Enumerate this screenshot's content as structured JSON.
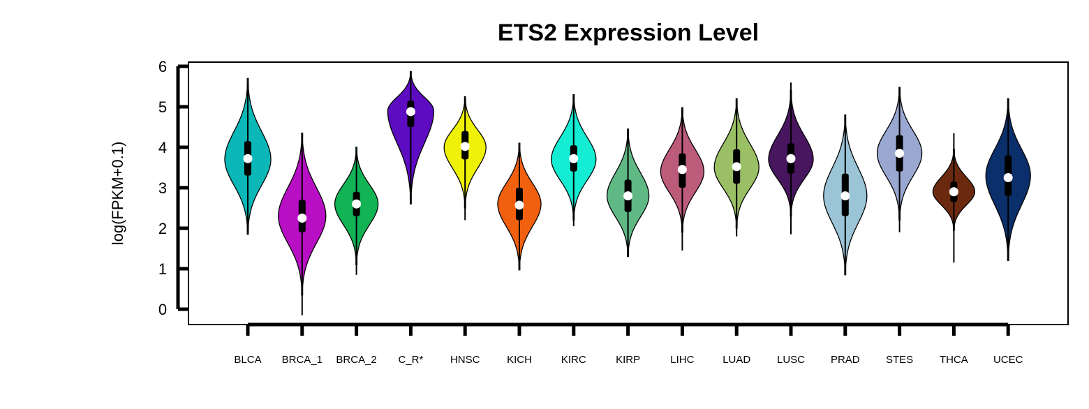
{
  "chart_data": {
    "type": "violin",
    "title": "ETS2 Expression Level",
    "xlabel": "",
    "ylabel": "log(FPKM+0.1)",
    "ylim": [
      -0.4,
      6.1
    ],
    "yticks": [
      0,
      1,
      2,
      3,
      4,
      5,
      6
    ],
    "categories": [
      "BLCA",
      "BRCA_1",
      "BRCA_2",
      "C_R*",
      "HNSC",
      "KICH",
      "KIRC",
      "KIRP",
      "LIHC",
      "LUAD",
      "LUSC",
      "PRAD",
      "STES",
      "THCA",
      "UCEC"
    ],
    "series": [
      {
        "category": "BLCA",
        "color": "#0bb7b7",
        "min": 1.85,
        "max": 5.7,
        "q1": 3.3,
        "median": 3.72,
        "q3": 4.15,
        "whisker_low": 1.9,
        "whisker_high": 5.6,
        "mode": 3.7,
        "halfwidth": 33
      },
      {
        "category": "BRCA_1",
        "color": "#b80fc4",
        "min": 0.35,
        "max": 4.35,
        "q1": 1.9,
        "median": 2.25,
        "q3": 2.7,
        "whisker_low": -0.15,
        "whisker_high": 4.3,
        "mode": 2.3,
        "halfwidth": 34
      },
      {
        "category": "BRCA_2",
        "color": "#11b354",
        "min": 1.1,
        "max": 4.0,
        "q1": 2.3,
        "median": 2.6,
        "q3": 2.9,
        "whisker_low": 0.85,
        "whisker_high": 3.9,
        "mode": 2.6,
        "halfwidth": 31
      },
      {
        "category": "C_R*",
        "color": "#5d0cc1",
        "min": 2.6,
        "max": 5.87,
        "q1": 4.5,
        "median": 4.88,
        "q3": 5.15,
        "whisker_low": 2.6,
        "whisker_high": 5.87,
        "mode": 4.9,
        "halfwidth": 33
      },
      {
        "category": "HNSC",
        "color": "#eff108",
        "min": 2.5,
        "max": 5.25,
        "q1": 3.7,
        "median": 4.02,
        "q3": 4.4,
        "whisker_low": 2.2,
        "whisker_high": 5.2,
        "mode": 4.0,
        "halfwidth": 30
      },
      {
        "category": "KICH",
        "color": "#f0600f",
        "min": 0.97,
        "max": 4.1,
        "q1": 2.2,
        "median": 2.57,
        "q3": 3.0,
        "whisker_low": 1.0,
        "whisker_high": 4.0,
        "mode": 2.6,
        "halfwidth": 31
      },
      {
        "category": "KIRC",
        "color": "#14ecd4",
        "min": 2.2,
        "max": 5.3,
        "q1": 3.4,
        "median": 3.72,
        "q3": 4.05,
        "whisker_low": 2.05,
        "whisker_high": 5.3,
        "mode": 3.7,
        "halfwidth": 32
      },
      {
        "category": "KIRP",
        "color": "#60b985",
        "min": 1.3,
        "max": 4.45,
        "q1": 2.4,
        "median": 2.8,
        "q3": 3.2,
        "whisker_low": 1.3,
        "whisker_high": 4.4,
        "mode": 2.8,
        "halfwidth": 30
      },
      {
        "category": "LIHC",
        "color": "#bd5b7b",
        "min": 1.9,
        "max": 4.98,
        "q1": 3.0,
        "median": 3.45,
        "q3": 3.85,
        "whisker_low": 1.45,
        "whisker_high": 4.95,
        "mode": 3.4,
        "halfwidth": 31
      },
      {
        "category": "LUAD",
        "color": "#9abf64",
        "min": 2.0,
        "max": 5.2,
        "q1": 3.1,
        "median": 3.52,
        "q3": 3.95,
        "whisker_low": 1.8,
        "whisker_high": 5.2,
        "mode": 3.5,
        "halfwidth": 32
      },
      {
        "category": "LUSC",
        "color": "#48155f",
        "min": 2.3,
        "max": 5.4,
        "q1": 3.35,
        "median": 3.72,
        "q3": 4.1,
        "whisker_low": 1.85,
        "whisker_high": 5.6,
        "mode": 3.7,
        "halfwidth": 32
      },
      {
        "category": "PRAD",
        "color": "#9bc4d6",
        "min": 0.85,
        "max": 4.8,
        "q1": 2.3,
        "median": 2.8,
        "q3": 3.35,
        "whisker_low": 0.85,
        "whisker_high": 4.8,
        "mode": 2.8,
        "halfwidth": 31
      },
      {
        "category": "STES",
        "color": "#9aa8d1",
        "min": 2.2,
        "max": 5.48,
        "q1": 3.4,
        "median": 3.85,
        "q3": 4.3,
        "whisker_low": 1.9,
        "whisker_high": 5.48,
        "mode": 3.85,
        "halfwidth": 32
      },
      {
        "category": "THCA",
        "color": "#6b2a10",
        "min": 1.95,
        "max": 3.95,
        "q1": 2.65,
        "median": 2.9,
        "q3": 3.15,
        "whisker_low": 1.15,
        "whisker_high": 4.35,
        "mode": 2.9,
        "halfwidth": 30
      },
      {
        "category": "UCEC",
        "color": "#0b2f6a",
        "min": 1.2,
        "max": 5.2,
        "q1": 2.8,
        "median": 3.25,
        "q3": 3.8,
        "whisker_low": 1.2,
        "whisker_high": 5.2,
        "mode": 3.3,
        "halfwidth": 32
      }
    ],
    "grid": false,
    "legend": "none"
  }
}
